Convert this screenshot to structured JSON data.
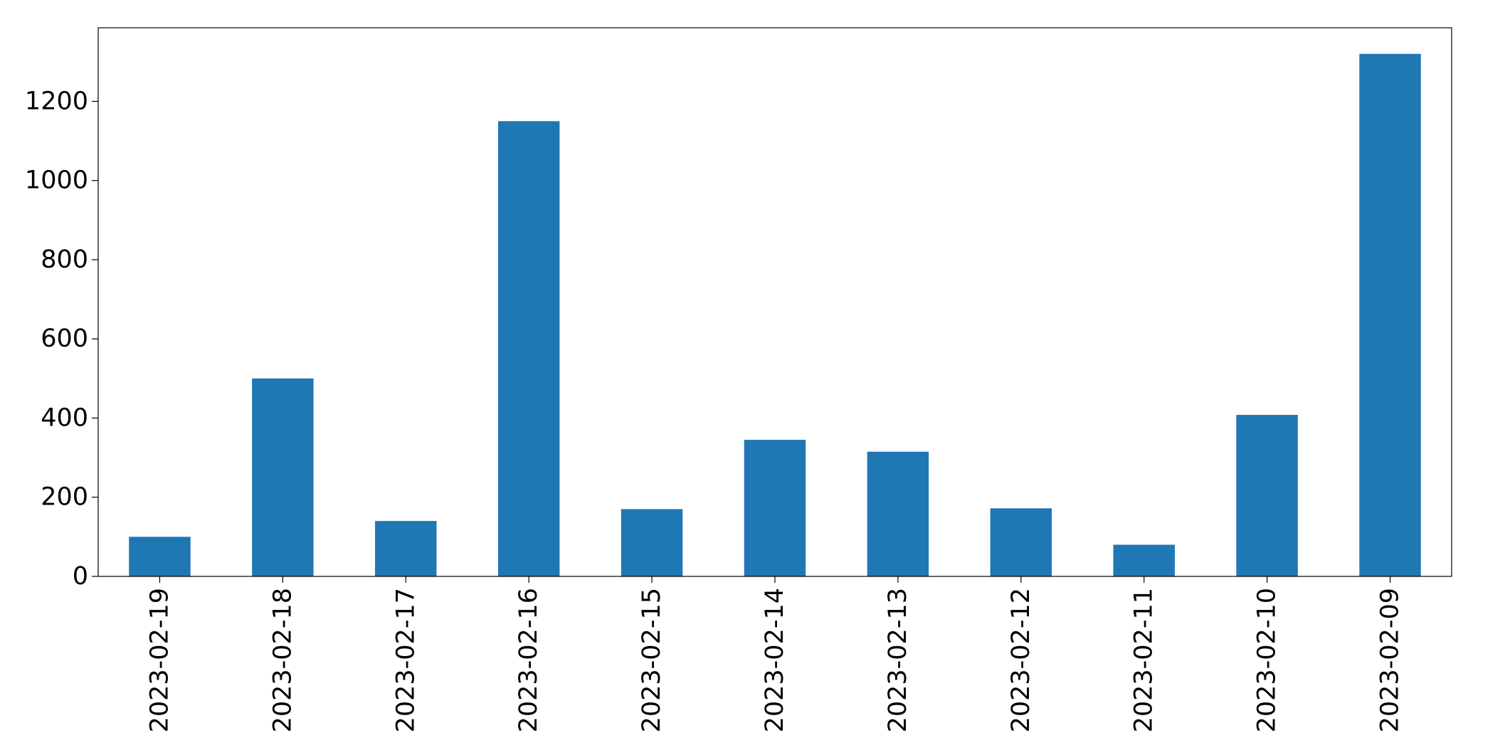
{
  "chart_data": {
    "type": "bar",
    "title": "",
    "xlabel": "",
    "ylabel": "",
    "categories": [
      "2023-02-19",
      "2023-02-18",
      "2023-02-17",
      "2023-02-16",
      "2023-02-15",
      "2023-02-14",
      "2023-02-13",
      "2023-02-12",
      "2023-02-11",
      "2023-02-10",
      "2023-02-09"
    ],
    "values": [
      100,
      500,
      140,
      1150,
      170,
      345,
      315,
      172,
      80,
      408,
      1320
    ],
    "ylim": [
      0,
      1386
    ],
    "yticks": [
      0,
      200,
      400,
      600,
      800,
      1000,
      1200
    ],
    "xtick_rotation": 90,
    "grid": false,
    "legend": "none",
    "bar_color": "#1f77b4"
  }
}
